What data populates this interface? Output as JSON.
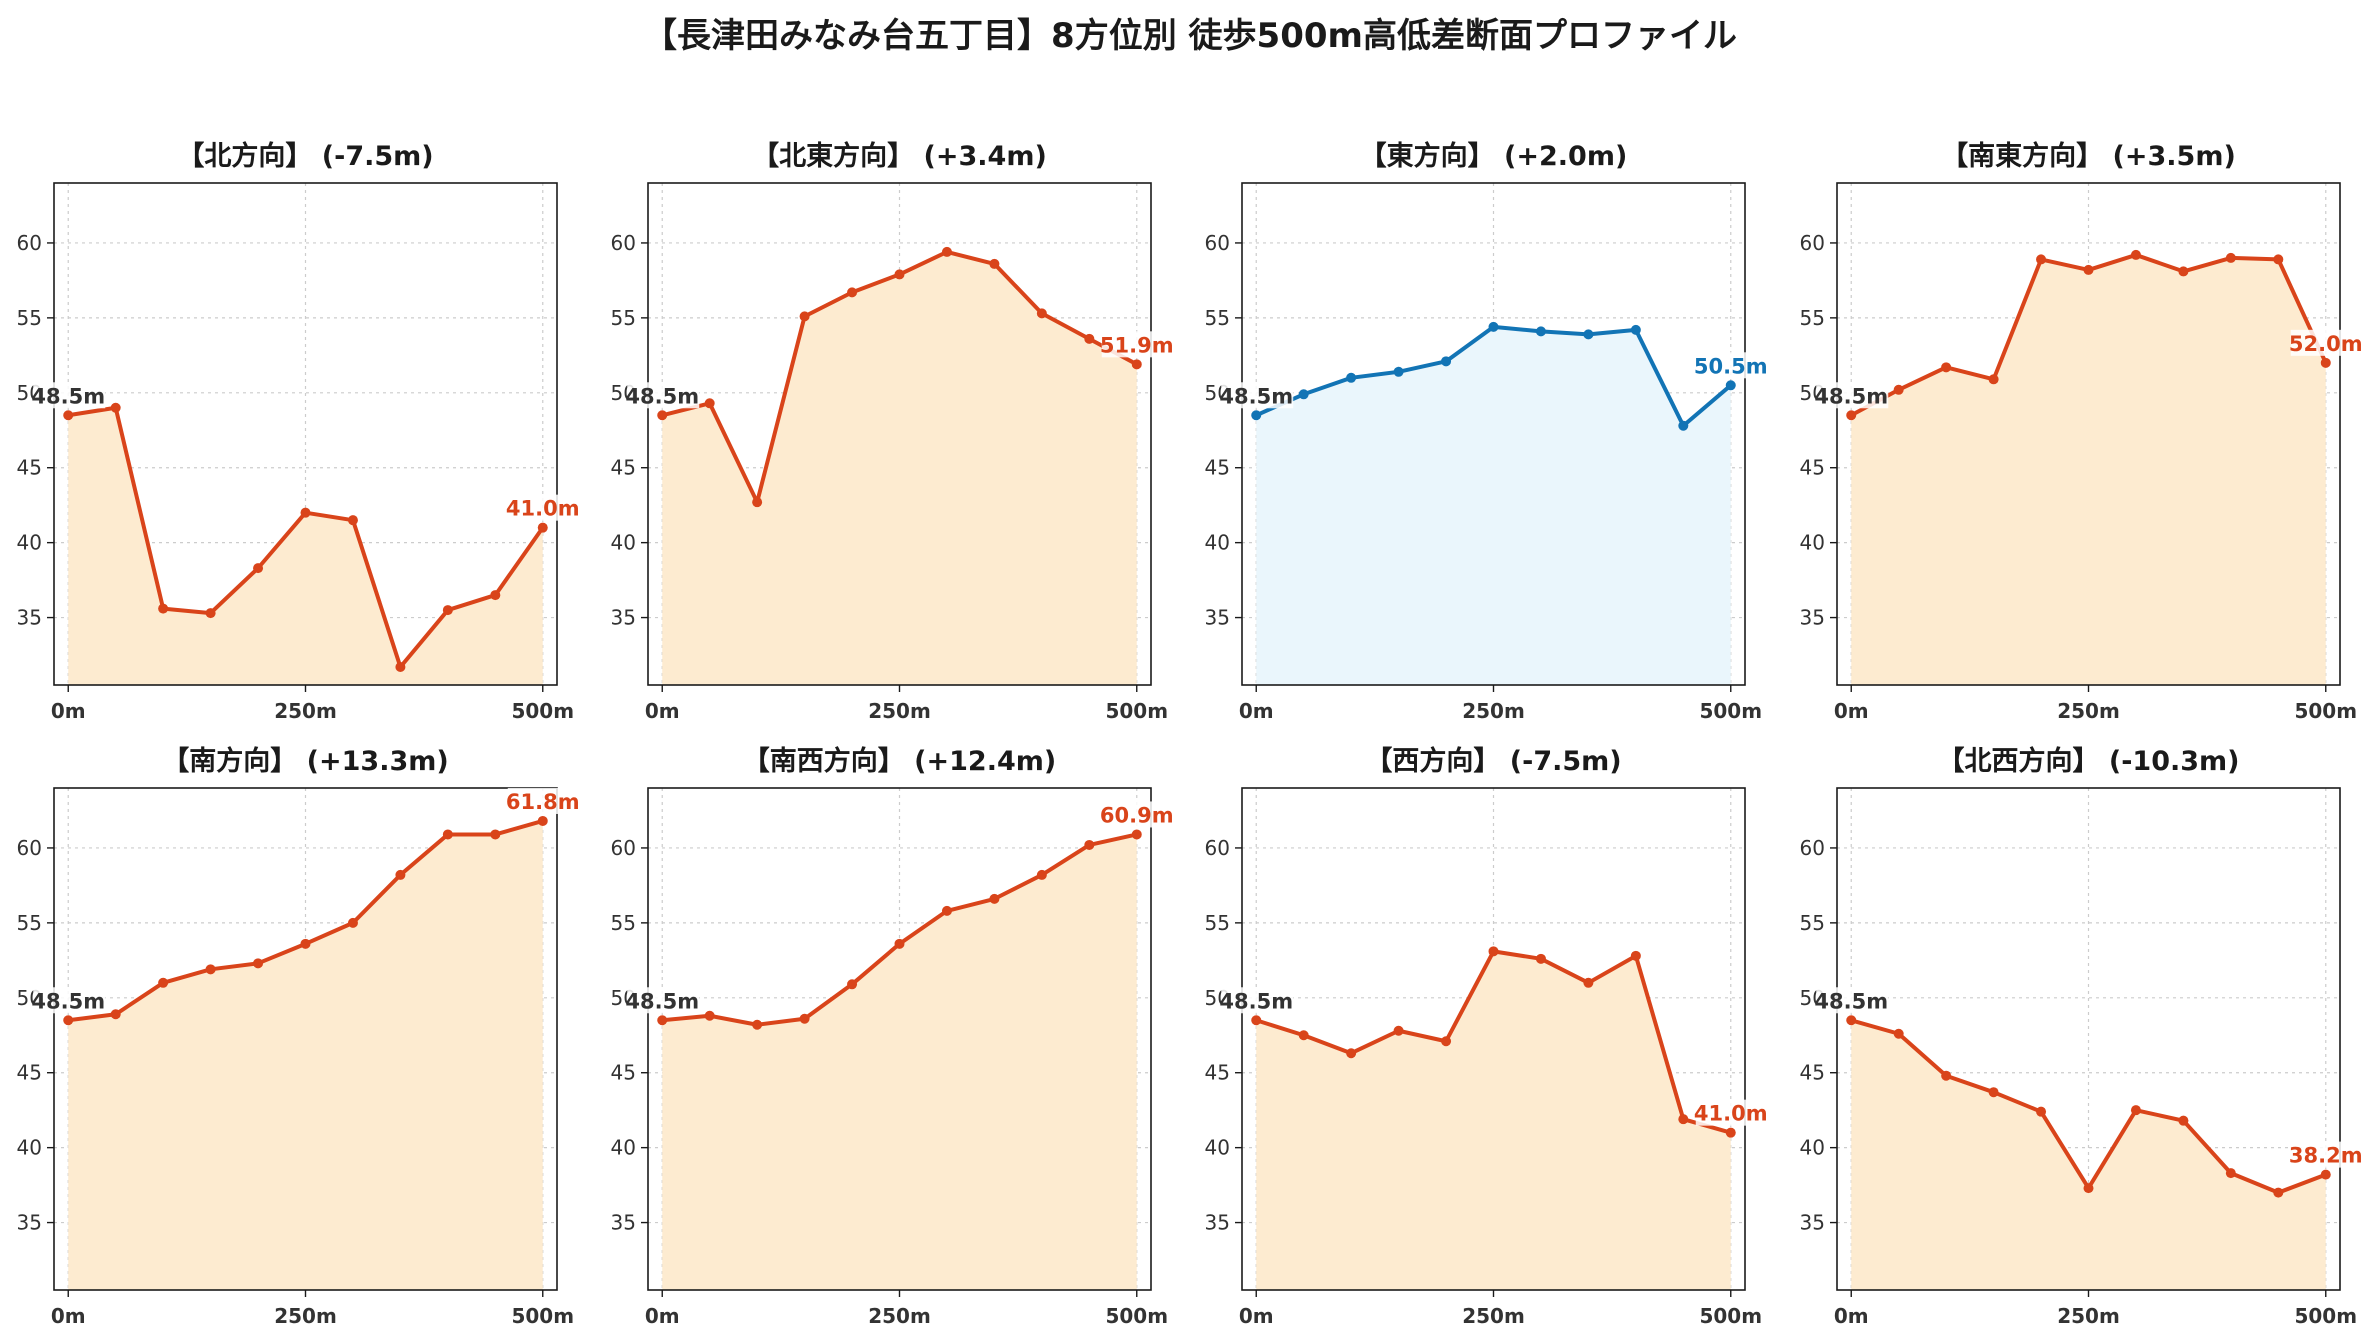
{
  "title": "【長津田みなみ台五丁目】8方位別 徒歩500m高低差断面プロファイル",
  "colors": {
    "warm_line": "#d9441a",
    "warm_fill": "#fdebd0",
    "cool_line": "#1274b5",
    "cool_fill": "#eaf6fc",
    "start_label": "#333333",
    "grid": "#cccccc"
  },
  "chart_data": [
    {
      "type": "area",
      "title": "【北方向】 (-7.5m)",
      "style": "warm",
      "x": [
        0,
        50,
        100,
        150,
        200,
        250,
        300,
        350,
        400,
        450,
        500
      ],
      "y": [
        48.5,
        49.0,
        35.6,
        35.3,
        38.3,
        42.0,
        41.5,
        31.7,
        35.5,
        36.5,
        41.0
      ],
      "start_label": "48.5m",
      "end_label": "41.0m",
      "xticks": [
        "0m",
        "250m",
        "500m"
      ],
      "xtick_values": [
        0,
        250,
        500
      ],
      "yticks": [
        35,
        40,
        45,
        50,
        55,
        60
      ],
      "ylim": [
        30.5,
        64
      ],
      "xlim": [
        -15,
        515
      ],
      "grid": true
    },
    {
      "type": "area",
      "title": "【北東方向】 (+3.4m)",
      "style": "warm",
      "x": [
        0,
        50,
        100,
        150,
        200,
        250,
        300,
        350,
        400,
        450,
        500
      ],
      "y": [
        48.5,
        49.3,
        42.7,
        55.1,
        56.7,
        57.9,
        59.4,
        58.6,
        55.3,
        53.6,
        51.9
      ],
      "start_label": "48.5m",
      "end_label": "51.9m",
      "xticks": [
        "0m",
        "250m",
        "500m"
      ],
      "xtick_values": [
        0,
        250,
        500
      ],
      "yticks": [
        35,
        40,
        45,
        50,
        55,
        60
      ],
      "ylim": [
        30.5,
        64
      ],
      "xlim": [
        -15,
        515
      ],
      "grid": true
    },
    {
      "type": "area",
      "title": "【東方向】 (+2.0m)",
      "style": "cool",
      "x": [
        0,
        50,
        100,
        150,
        200,
        250,
        300,
        350,
        400,
        450,
        500
      ],
      "y": [
        48.5,
        49.9,
        51.0,
        51.4,
        52.1,
        54.4,
        54.1,
        53.9,
        54.2,
        47.8,
        50.5
      ],
      "start_label": "48.5m",
      "end_label": "50.5m",
      "xticks": [
        "0m",
        "250m",
        "500m"
      ],
      "xtick_values": [
        0,
        250,
        500
      ],
      "yticks": [
        35,
        40,
        45,
        50,
        55,
        60
      ],
      "ylim": [
        30.5,
        64
      ],
      "xlim": [
        -15,
        515
      ],
      "grid": true
    },
    {
      "type": "area",
      "title": "【南東方向】 (+3.5m)",
      "style": "warm",
      "x": [
        0,
        50,
        100,
        150,
        200,
        250,
        300,
        350,
        400,
        450,
        500
      ],
      "y": [
        48.5,
        50.2,
        51.7,
        50.9,
        58.9,
        58.2,
        59.2,
        58.1,
        59.0,
        58.9,
        52.0
      ],
      "start_label": "48.5m",
      "end_label": "52.0m",
      "xticks": [
        "0m",
        "250m",
        "500m"
      ],
      "xtick_values": [
        0,
        250,
        500
      ],
      "yticks": [
        35,
        40,
        45,
        50,
        55,
        60
      ],
      "ylim": [
        30.5,
        64
      ],
      "xlim": [
        -15,
        515
      ],
      "grid": true
    },
    {
      "type": "area",
      "title": "【南方向】 (+13.3m)",
      "style": "warm",
      "x": [
        0,
        50,
        100,
        150,
        200,
        250,
        300,
        350,
        400,
        450,
        500
      ],
      "y": [
        48.5,
        48.9,
        51.0,
        51.9,
        52.3,
        53.6,
        55.0,
        58.2,
        60.9,
        60.9,
        61.8
      ],
      "start_label": "48.5m",
      "end_label": "61.8m",
      "xticks": [
        "0m",
        "250m",
        "500m"
      ],
      "xtick_values": [
        0,
        250,
        500
      ],
      "yticks": [
        35,
        40,
        45,
        50,
        55,
        60
      ],
      "ylim": [
        30.5,
        64
      ],
      "xlim": [
        -15,
        515
      ],
      "grid": true
    },
    {
      "type": "area",
      "title": "【南西方向】 (+12.4m)",
      "style": "warm",
      "x": [
        0,
        50,
        100,
        150,
        200,
        250,
        300,
        350,
        400,
        450,
        500
      ],
      "y": [
        48.5,
        48.8,
        48.2,
        48.6,
        50.9,
        53.6,
        55.8,
        56.6,
        58.2,
        60.2,
        60.9
      ],
      "start_label": "48.5m",
      "end_label": "60.9m",
      "xticks": [
        "0m",
        "250m",
        "500m"
      ],
      "xtick_values": [
        0,
        250,
        500
      ],
      "yticks": [
        35,
        40,
        45,
        50,
        55,
        60
      ],
      "ylim": [
        30.5,
        64
      ],
      "xlim": [
        -15,
        515
      ],
      "grid": true
    },
    {
      "type": "area",
      "title": "【西方向】 (-7.5m)",
      "style": "warm",
      "x": [
        0,
        50,
        100,
        150,
        200,
        250,
        300,
        350,
        400,
        450,
        500
      ],
      "y": [
        48.5,
        47.5,
        46.3,
        47.8,
        47.1,
        53.1,
        52.6,
        51.0,
        52.8,
        41.9,
        41.0
      ],
      "start_label": "48.5m",
      "end_label": "41.0m",
      "xticks": [
        "0m",
        "250m",
        "500m"
      ],
      "xtick_values": [
        0,
        250,
        500
      ],
      "yticks": [
        35,
        40,
        45,
        50,
        55,
        60
      ],
      "ylim": [
        30.5,
        64
      ],
      "xlim": [
        -15,
        515
      ],
      "grid": true
    },
    {
      "type": "area",
      "title": "【北西方向】 (-10.3m)",
      "style": "warm",
      "x": [
        0,
        50,
        100,
        150,
        200,
        250,
        300,
        350,
        400,
        450,
        500
      ],
      "y": [
        48.5,
        47.6,
        44.8,
        43.7,
        42.4,
        37.3,
        42.5,
        41.8,
        38.3,
        37.0,
        38.2
      ],
      "start_label": "48.5m",
      "end_label": "38.2m",
      "xticks": [
        "0m",
        "250m",
        "500m"
      ],
      "xtick_values": [
        0,
        250,
        500
      ],
      "yticks": [
        35,
        40,
        45,
        50,
        55,
        60
      ],
      "ylim": [
        30.5,
        64
      ],
      "xlim": [
        -15,
        515
      ],
      "grid": true
    }
  ]
}
